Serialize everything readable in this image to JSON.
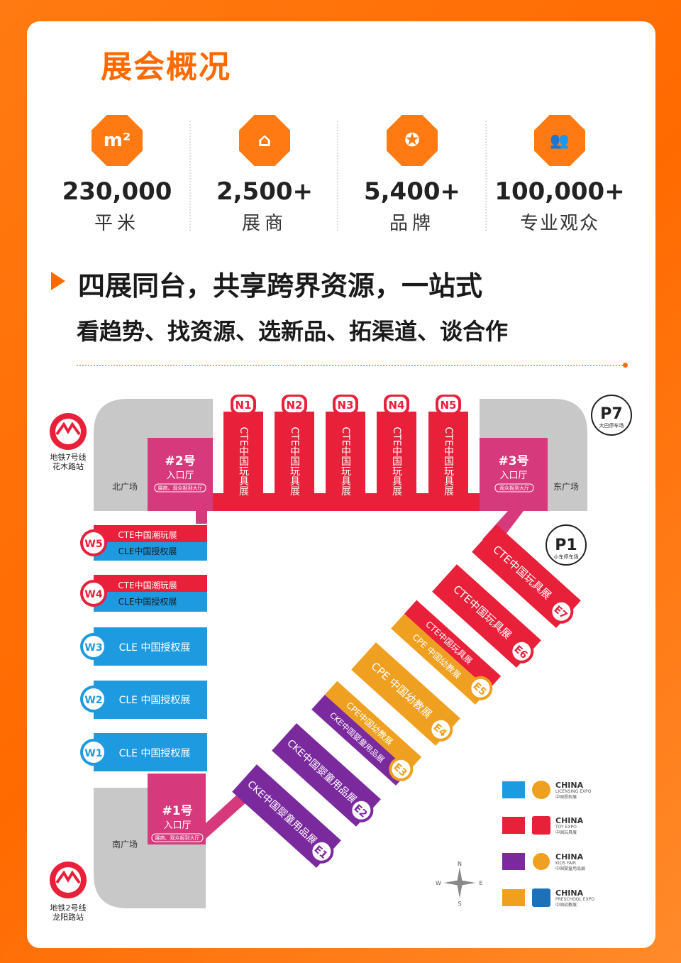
{
  "title": "展会概况",
  "stats": [
    {
      "icon": "m2-area-icon",
      "glyph": "m²",
      "num": "230,000",
      "unit": "平米"
    },
    {
      "icon": "exhibitor-booth-icon",
      "glyph": "⌂",
      "num": "2,500+",
      "unit": "展商"
    },
    {
      "icon": "brand-badge-icon",
      "glyph": "✪",
      "num": "5,400+",
      "unit": "品牌"
    },
    {
      "icon": "visitors-group-icon",
      "glyph": "👥",
      "num": "100,000+",
      "unit": "专业观众"
    }
  ],
  "headline": "四展同台，共享跨界资源，一站式",
  "subheadline": "看趋势、找资源、选新品、拓渠道、谈合作",
  "map": {
    "metro_top": {
      "line": "地铁7号线",
      "station": "花木路站"
    },
    "metro_bottom": {
      "line": "地铁2号线",
      "station": "龙阳路站"
    },
    "north_plaza": "北广场",
    "east_plaza": "东广场",
    "south_plaza": "南广场",
    "entrance2": {
      "title": "#2号",
      "sub": "入口厅",
      "note": "展商、观众报到大厅"
    },
    "entrance3": {
      "title": "#3号",
      "sub": "入口厅",
      "note": "观众报到大厅"
    },
    "entrance1": {
      "title": "#1号",
      "sub": "入口厅",
      "note": "展商、观众报到大厅"
    },
    "p7": {
      "label": "P7",
      "sub": "大巴停车场"
    },
    "p1": {
      "label": "P1",
      "sub": "小车停车场"
    },
    "north_halls": [
      {
        "id": "N1",
        "name": "CTE中国玩具展"
      },
      {
        "id": "N2",
        "name": "CTE中国玩具展"
      },
      {
        "id": "N3",
        "name": "CTE中国玩具展"
      },
      {
        "id": "N4",
        "name": "CTE中国玩具展"
      },
      {
        "id": "N5",
        "name": "CTE中国玩具展"
      }
    ],
    "west_halls": [
      {
        "id": "W5",
        "top": "CTE中国潮玩展",
        "bottom": "CLE中国授权展"
      },
      {
        "id": "W4",
        "top": "CTE中国潮玩展",
        "bottom": "CLE中国授权展"
      },
      {
        "id": "W3",
        "name": "CLE 中国授权展"
      },
      {
        "id": "W2",
        "name": "CLE 中国授权展"
      },
      {
        "id": "W1",
        "name": "CLE 中国授权展"
      }
    ],
    "east_halls": [
      {
        "id": "E7",
        "name": "CTE中国玩具展"
      },
      {
        "id": "E6",
        "name": "CTE中国玩具展"
      },
      {
        "id": "E5",
        "top": "CTE中国玩具展",
        "bottom": "CPE 中国幼教展"
      },
      {
        "id": "E4",
        "name": "CPE 中国幼教展"
      },
      {
        "id": "E3",
        "top": "CPE中国幼教展",
        "bottom": "CKE中国婴童用品展"
      },
      {
        "id": "E2",
        "name": "CKE中国婴童用品展"
      },
      {
        "id": "E1",
        "name": "CKE中国婴童用品展"
      }
    ],
    "compass": {
      "n": "N",
      "s": "S",
      "e": "E",
      "w": "W"
    }
  },
  "legend": [
    {
      "color": "#1e9ae0",
      "brand": "CHINA",
      "sub": "LICENSING EXPO",
      "cn": "中国授权展"
    },
    {
      "color": "#e8203a",
      "brand": "CHINA",
      "sub": "TOY EXPO",
      "cn": "中国玩具展"
    },
    {
      "color": "#7b2a9e",
      "brand": "CHINA",
      "sub": "KIDS FAIR",
      "cn": "中国婴童用品展"
    },
    {
      "color": "#f0a020",
      "brand": "CHINA",
      "sub": "PRESCHOOL EXPO",
      "cn": "中国幼教展"
    }
  ],
  "colors": {
    "red": "#e8203a",
    "blue": "#1e9ae0",
    "purple": "#7b2a9e",
    "orange": "#f0a020",
    "pink": "#d63a7c",
    "gray": "#c8c8c8"
  }
}
